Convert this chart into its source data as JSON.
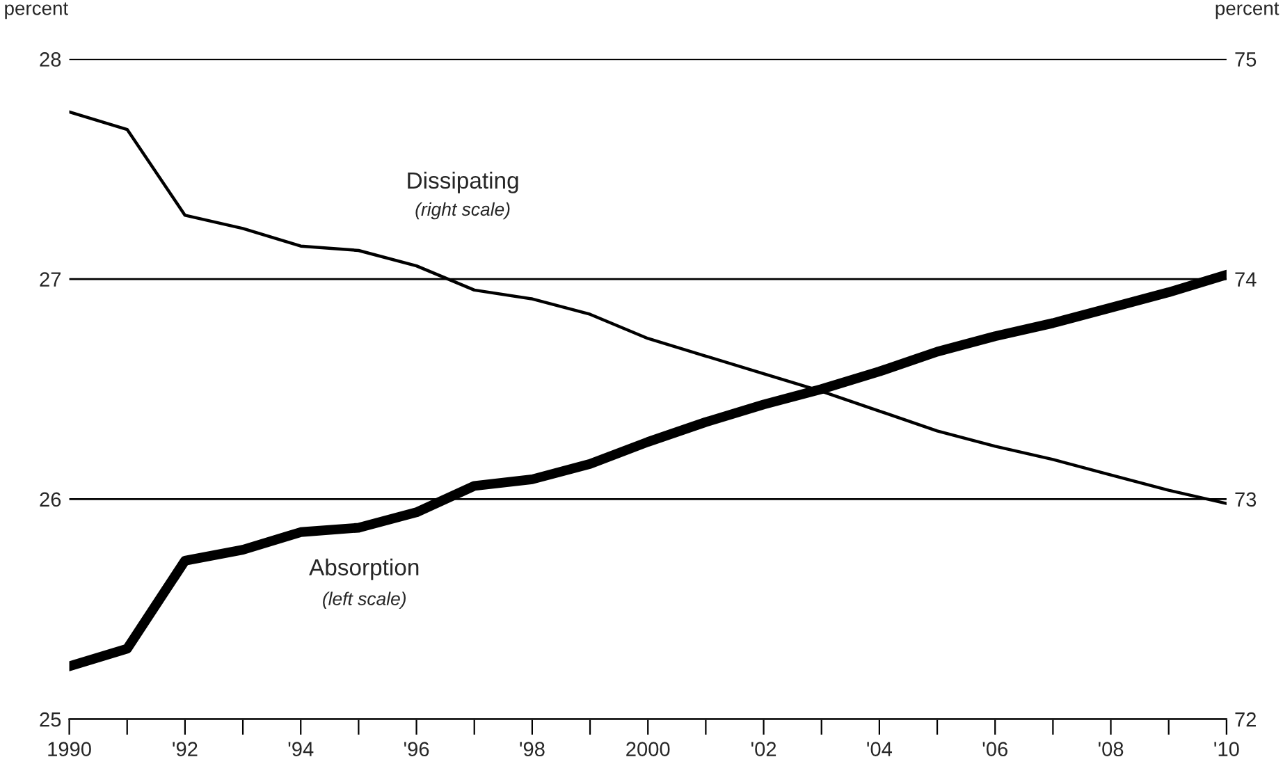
{
  "chart_data": {
    "type": "line",
    "x": [
      1990,
      1991,
      1992,
      1993,
      1994,
      1995,
      1996,
      1997,
      1998,
      1999,
      2000,
      2001,
      2002,
      2003,
      2004,
      2005,
      2006,
      2007,
      2008,
      2009,
      2010
    ],
    "series": [
      {
        "color": "#000000",
        "values": [
          25.24,
          25.32,
          25.72,
          25.77,
          25.85,
          25.87,
          25.94,
          26.06,
          26.09,
          26.16,
          26.26,
          26.35,
          26.43,
          26.5,
          26.58,
          26.67,
          26.74,
          26.8,
          26.87,
          26.94,
          27.02
        ]
      },
      {
        "color": "#000000",
        "axis": "y2",
        "values": [
          74.76,
          74.68,
          74.29,
          74.23,
          74.15,
          74.13,
          74.06,
          73.95,
          73.91,
          73.84,
          73.73,
          73.65,
          73.57,
          73.49,
          73.4,
          73.31,
          73.24,
          73.18,
          73.11,
          73.04,
          72.98
        ]
      }
    ],
    "xlim": [
      1990,
      2010
    ],
    "xticks": [
      1990,
      {
        "value": 1991,
        "label": null
      },
      {
        "value": 1992,
        "label": "'92"
      },
      {
        "value": 1993,
        "label": null
      },
      {
        "value": 1994,
        "label": "'94"
      },
      {
        "value": 1995,
        "label": null
      },
      {
        "value": 1996,
        "label": "'96"
      },
      {
        "value": 1997,
        "label": null
      },
      {
        "value": 1998,
        "label": "'98"
      },
      {
        "value": 1999,
        "label": null
      },
      2000,
      {
        "value": 2001,
        "label": null
      },
      {
        "value": 2002,
        "label": "'02"
      },
      {
        "value": 2003,
        "label": null
      },
      {
        "value": 2004,
        "label": "'04"
      },
      {
        "value": 2005,
        "label": null
      },
      {
        "value": 2006,
        "label": "'06"
      },
      {
        "value": 2007,
        "label": null
      },
      {
        "value": 2008,
        "label": "'08"
      },
      {
        "value": 2009,
        "label": null
      },
      {
        "value": 2010,
        "label": "'10"
      }
    ],
    "ylim": [
      25,
      28
    ],
    "yticks": [
      25,
      26,
      27,
      28
    ],
    "y2lim": [
      72,
      75
    ],
    "y2ticks": [
      72,
      73,
      74,
      75
    ],
    "ylabel": "percent",
    "y2label": "percent",
    "grid": "y",
    "annotations": [
      "Dissipating",
      "(right scale)",
      "Absorption",
      "(left scale)"
    ]
  }
}
